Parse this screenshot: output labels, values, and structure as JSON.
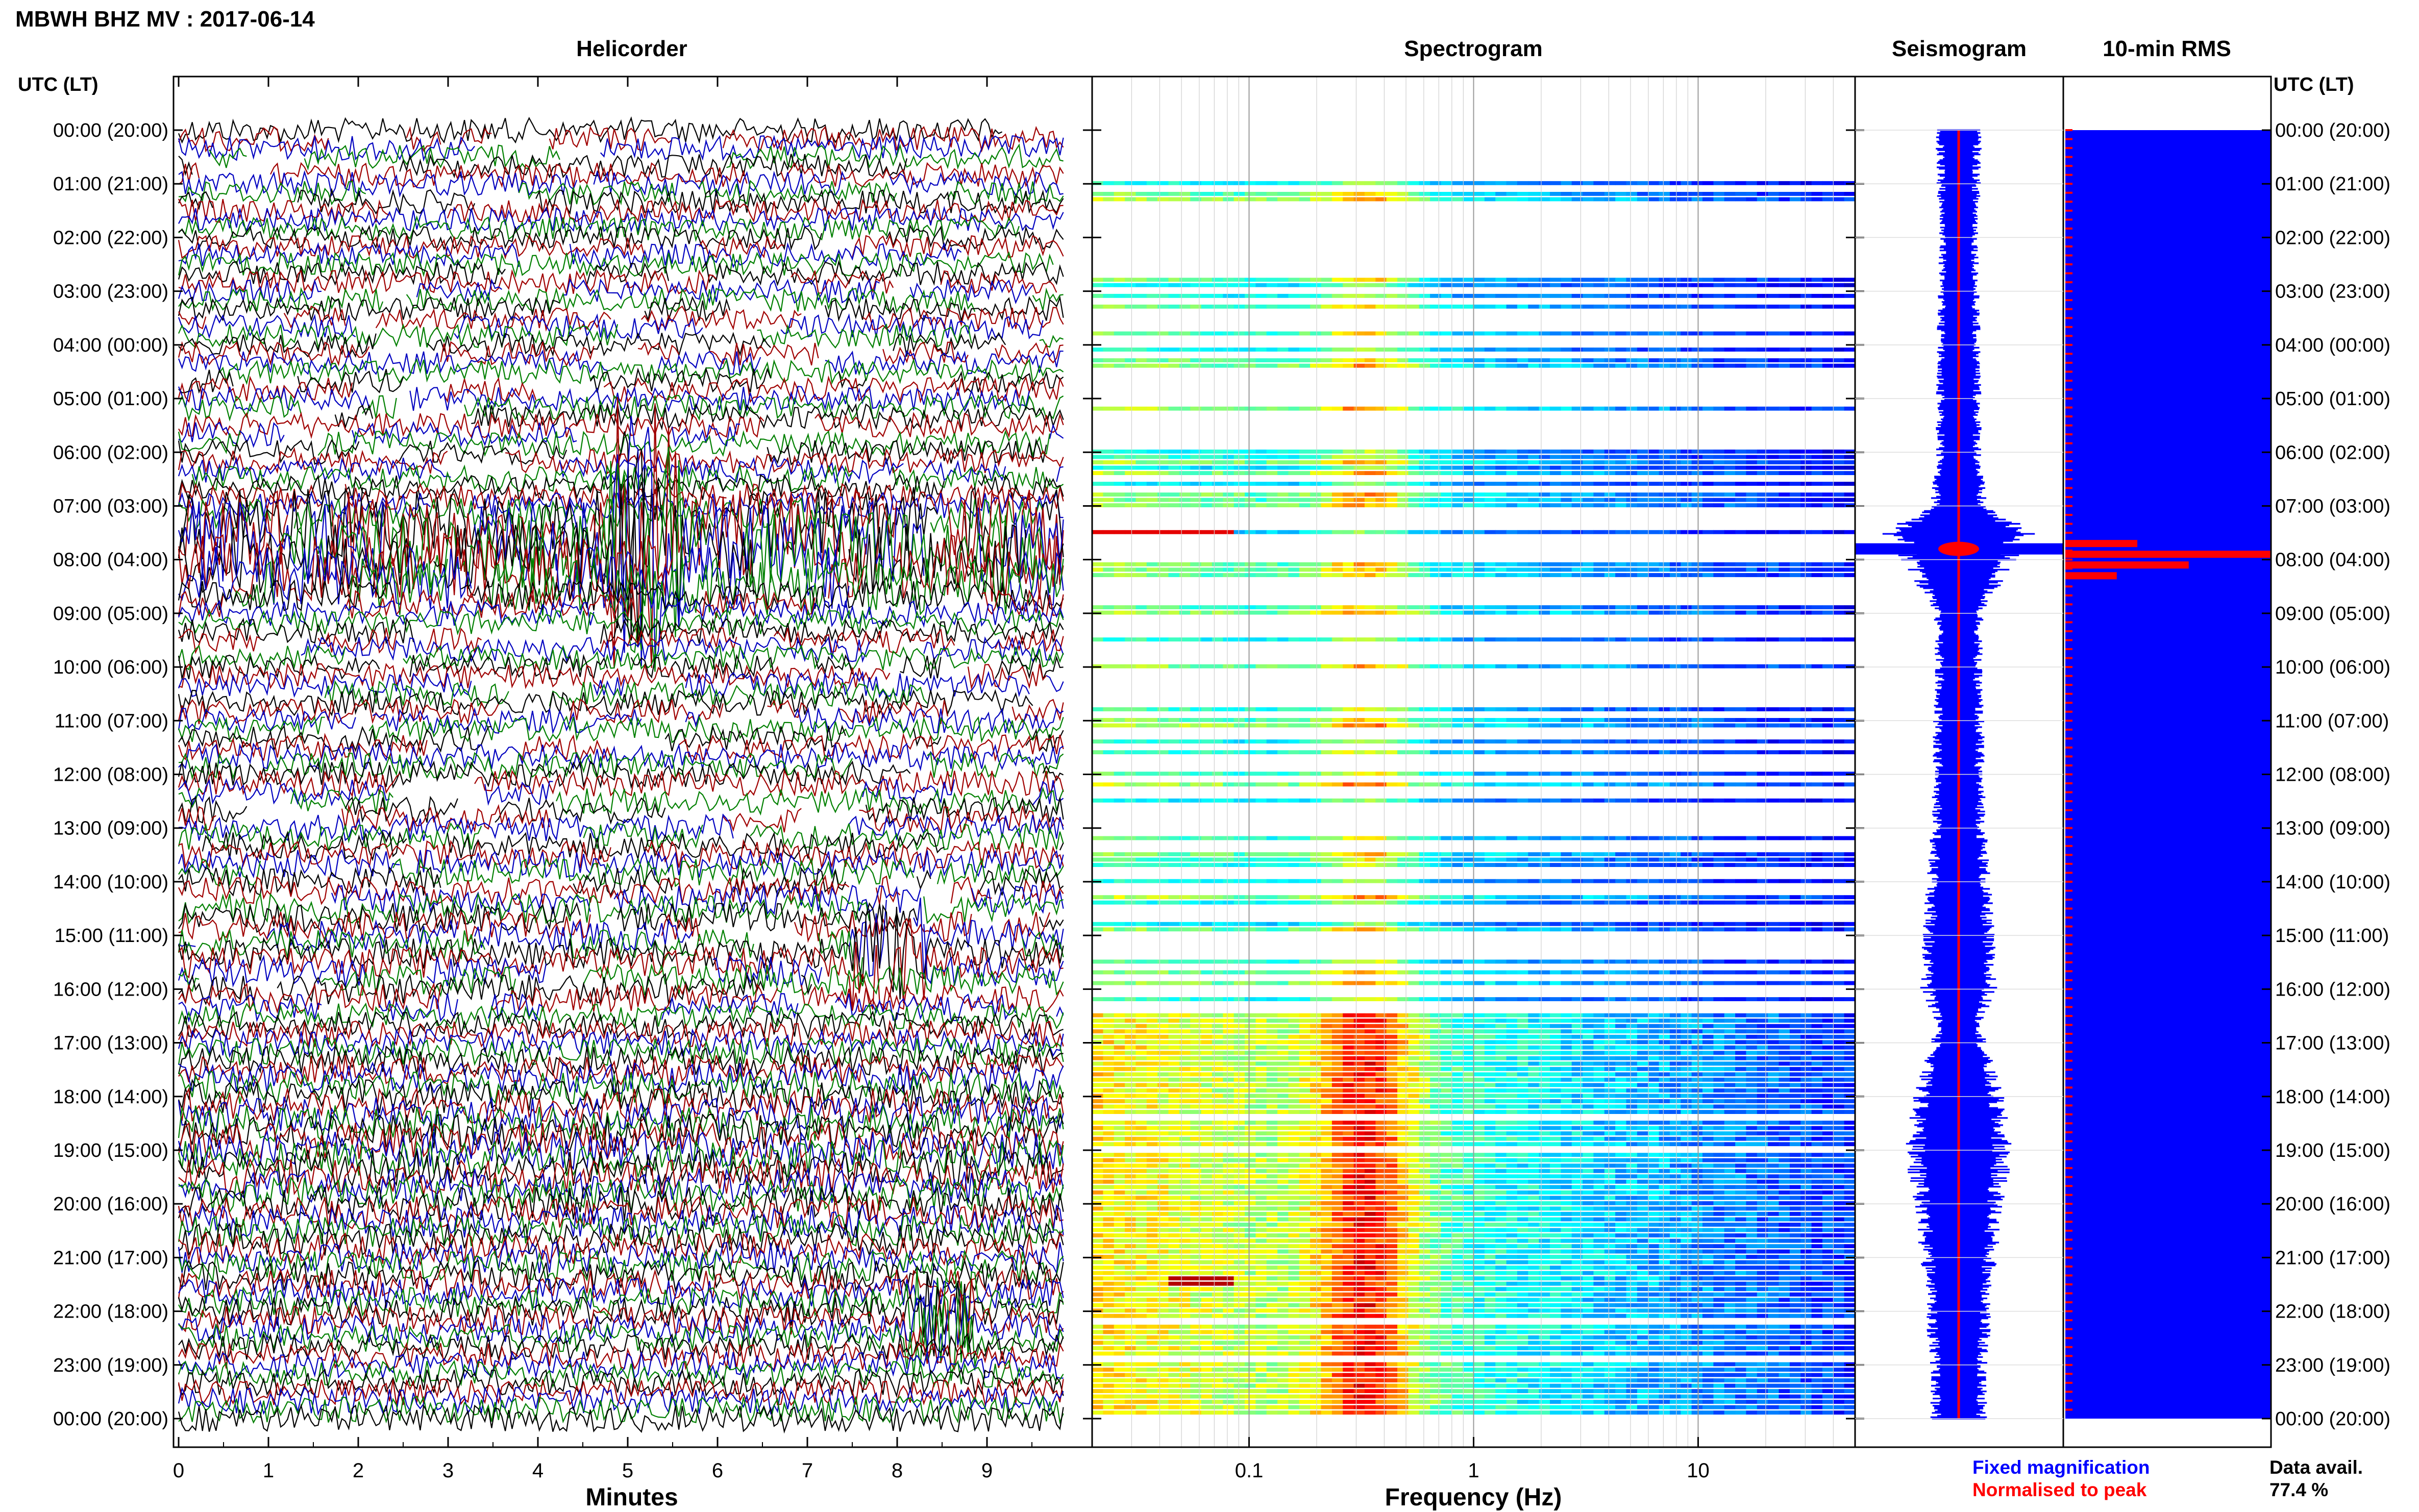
{
  "title": "MBWH BHZ MV : 2017-06-14",
  "colors": {
    "trace_cycle": [
      "#000000",
      "#a00000",
      "#0000c0",
      "#008000"
    ],
    "fixed": "#0000ff",
    "normalised": "#ff0000",
    "rms_fill": "#0000ff",
    "rms_peak": "#ff0000"
  },
  "time_axis": {
    "left_header": "UTC (LT)",
    "right_header": "UTC (LT)",
    "labels": [
      "00:00 (20:00)",
      "01:00 (21:00)",
      "02:00 (22:00)",
      "03:00 (23:00)",
      "04:00 (00:00)",
      "05:00 (01:00)",
      "06:00 (02:00)",
      "07:00 (03:00)",
      "08:00 (04:00)",
      "09:00 (05:00)",
      "10:00 (06:00)",
      "11:00 (07:00)",
      "12:00 (08:00)",
      "13:00 (09:00)",
      "14:00 (10:00)",
      "15:00 (11:00)",
      "16:00 (12:00)",
      "17:00 (13:00)",
      "18:00 (14:00)",
      "19:00 (15:00)",
      "20:00 (16:00)",
      "21:00 (17:00)",
      "22:00 (18:00)",
      "23:00 (19:00)",
      "00:00 (20:00)"
    ]
  },
  "chart_data": [
    {
      "type": "line",
      "panel": "helicorder",
      "title": "Helicorder",
      "xlabel": "Minutes",
      "xlim": [
        0,
        10
      ],
      "xticks": [
        "0",
        "1",
        "2",
        "3",
        "4",
        "5",
        "6",
        "7",
        "8",
        "9"
      ],
      "ylim_hours": [
        0,
        24
      ],
      "lines_per_hour": 6,
      "coverage_note": "sparse 00:00-16:30 UTC, continuous 16:30-24:00 UTC",
      "events": [
        {
          "time_utc": "07:40",
          "minute": 5.2,
          "description": "tremor burst"
        },
        {
          "time_utc": "15:20",
          "minute": 7.9,
          "description": "event"
        },
        {
          "time_utc": "22:10",
          "minute": 8.5,
          "description": "event"
        }
      ]
    },
    {
      "type": "heatmap",
      "panel": "spectrogram",
      "title": "Spectrogram",
      "xlabel": "Frequency (Hz)",
      "xscale": "log",
      "xlim": [
        0.02,
        50
      ],
      "xticks": [
        "0.1",
        "1",
        "10"
      ],
      "colormap": "jet",
      "energy_band_hz": [
        0.2,
        0.5
      ]
    },
    {
      "type": "line",
      "panel": "seismogram",
      "title": "Seismogram",
      "series": [
        {
          "name": "Fixed magnification",
          "color": "#0000ff"
        },
        {
          "name": "Normalised to peak",
          "color": "#ff0000"
        }
      ],
      "envelope_hours": [
        0,
        1,
        2,
        3,
        4,
        5,
        6,
        7,
        7.5,
        8,
        9,
        10,
        11,
        12,
        13,
        14,
        15,
        16,
        16.5,
        17,
        18,
        19,
        20,
        21,
        22,
        23,
        24
      ],
      "envelope_halfwidth": [
        0.18,
        0.17,
        0.16,
        0.16,
        0.17,
        0.18,
        0.18,
        0.22,
        0.6,
        0.45,
        0.2,
        0.18,
        0.2,
        0.2,
        0.22,
        0.25,
        0.28,
        0.3,
        0.2,
        0.22,
        0.35,
        0.42,
        0.35,
        0.3,
        0.26,
        0.22,
        0.22
      ]
    },
    {
      "type": "bar",
      "panel": "rms",
      "title": "10-min RMS",
      "orientation": "horizontal",
      "data_availability_label": "Data avail.",
      "data_availability": "77.4 %",
      "peak_hours": [
        7.7,
        7.9,
        8.1,
        8.3
      ],
      "peak_values": [
        0.35,
        1.0,
        0.6,
        0.25
      ]
    }
  ]
}
